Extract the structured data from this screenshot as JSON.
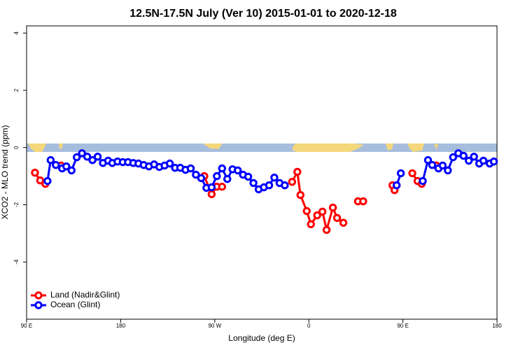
{
  "chart_data": {
    "type": "line",
    "title": "12.5N-17.5N July (Ver 10)   2015-01-01 to 2020-12-18",
    "x_label": "Longitude (deg E)",
    "y_label": "XCO2 - MLO trend (ppm)",
    "xlim": [
      90,
      540
    ],
    "xticks": [
      {
        "value": 90,
        "label": "90 E"
      },
      {
        "value": 180,
        "label": "180"
      },
      {
        "value": 270,
        "label": "90 W"
      },
      {
        "value": 360,
        "label": "0"
      },
      {
        "value": 450,
        "label": "90 E"
      },
      {
        "value": 540,
        "label": "180"
      }
    ],
    "ylim": [
      -6,
      4.25
    ],
    "yticks": [
      -4,
      -2,
      0,
      2,
      4
    ],
    "legend": "bottomleft",
    "series": [
      {
        "name": "Land (Nadir&Glint)",
        "color": "#ff0000",
        "x": [
          98,
          103,
          108,
          null,
          123,
          null,
          260,
          267,
          272,
          277,
          null,
          344,
          349,
          352,
          358,
          362,
          368,
          373,
          377,
          383,
          387,
          393,
          null,
          407,
          412,
          null,
          440,
          442,
          null,
          459,
          464,
          468,
          null,
          482
        ],
        "values": [
          -0.88,
          -1.15,
          -1.27,
          null,
          -0.63,
          null,
          -1.0,
          -1.63,
          -1.37,
          -1.37,
          null,
          -1.2,
          -0.85,
          -1.66,
          -2.22,
          -2.68,
          -2.37,
          -2.24,
          -2.88,
          -2.1,
          -2.46,
          -2.63,
          null,
          -1.88,
          -1.88,
          null,
          -1.32,
          -1.49,
          null,
          -0.9,
          -1.17,
          -1.27,
          null,
          -0.63
        ]
      },
      {
        "name": "Ocean (Glint)",
        "color": "#0000ff",
        "x": [
          110,
          113,
          118,
          124,
          128,
          133,
          138,
          143,
          148,
          153,
          158,
          163,
          168,
          172,
          177,
          182,
          187,
          192,
          197,
          202,
          207,
          212,
          217,
          222,
          227,
          232,
          237,
          242,
          247,
          252,
          257,
          262,
          267,
          272,
          277,
          282,
          287,
          292,
          297,
          302,
          307,
          312,
          317,
          322,
          327,
          332,
          337,
          null,
          444,
          448,
          null,
          469,
          474,
          478,
          484,
          488,
          493,
          498,
          503,
          508,
          513,
          518,
          523,
          527,
          533,
          537
        ],
        "values": [
          -1.17,
          -0.44,
          -0.61,
          -0.73,
          -0.66,
          -0.8,
          -0.34,
          -0.2,
          -0.32,
          -0.44,
          -0.32,
          -0.54,
          -0.46,
          -0.54,
          -0.49,
          -0.51,
          -0.51,
          -0.54,
          -0.56,
          -0.61,
          -0.66,
          -0.59,
          -0.68,
          -0.63,
          -0.56,
          -0.71,
          -0.71,
          -0.78,
          -0.73,
          -0.95,
          -1.07,
          -1.41,
          -1.39,
          -1.0,
          -0.73,
          -1.1,
          -0.76,
          -0.8,
          -0.95,
          -1.02,
          -1.24,
          -1.46,
          -1.39,
          -1.32,
          -1.05,
          -1.24,
          -1.32,
          null,
          -1.32,
          -0.9,
          null,
          -1.17,
          -0.44,
          -0.61,
          -0.73,
          -0.63,
          -0.8,
          -0.34,
          -0.2,
          -0.29,
          -0.46,
          -0.32,
          -0.56,
          -0.46,
          -0.56,
          -0.49
        ]
      }
    ]
  }
}
